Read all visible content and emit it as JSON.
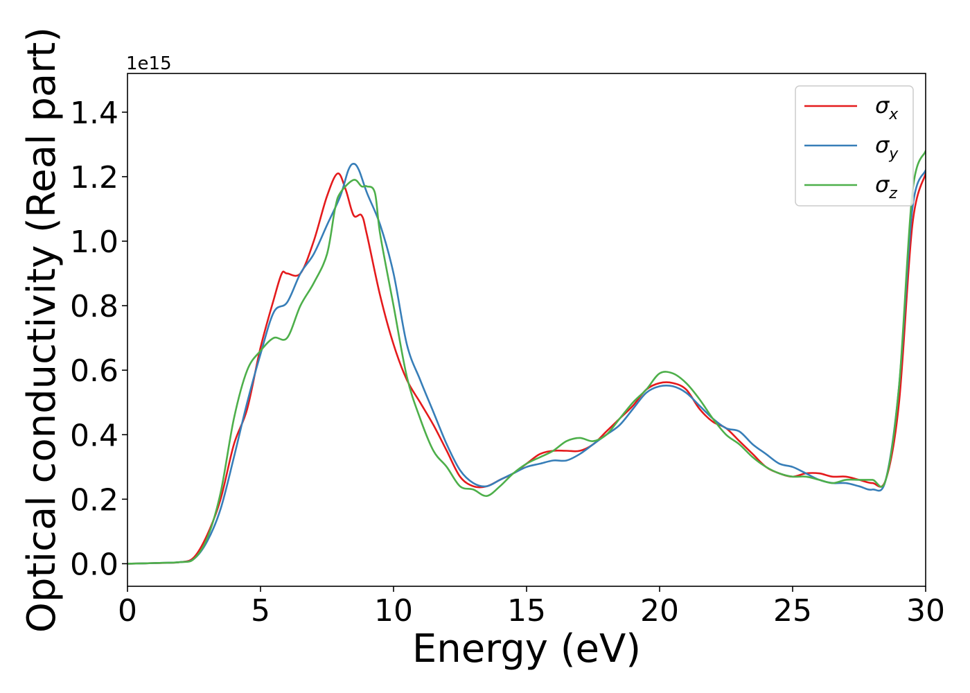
{
  "chart_data": {
    "type": "line",
    "xlabel": "Energy (eV)",
    "ylabel": "Optical conductivity (Real part)",
    "y_offset_label": "1e15",
    "xlim": [
      0,
      30
    ],
    "ylim": [
      -0.07,
      1.52
    ],
    "x_ticks": [
      0,
      5,
      10,
      15,
      20,
      25,
      30
    ],
    "x_tick_labels": [
      "0",
      "5",
      "10",
      "15",
      "20",
      "25",
      "30"
    ],
    "y_ticks": [
      0.0,
      0.2,
      0.4,
      0.6,
      0.8,
      1.0,
      1.2,
      1.4
    ],
    "y_tick_labels": [
      "0.0",
      "0.2",
      "0.4",
      "0.6",
      "0.8",
      "1.0",
      "1.2",
      "1.4"
    ],
    "grid": false,
    "legend_position": "top-right",
    "series": [
      {
        "name": "σ",
        "subscript": "x",
        "color": "#e41a1c",
        "x": [
          0,
          1,
          2,
          2.5,
          3,
          3.5,
          4,
          4.5,
          5,
          5.5,
          5.8,
          6,
          6.5,
          7,
          7.5,
          7.9,
          8.2,
          8.5,
          8.8,
          9,
          9.5,
          10,
          10.5,
          11,
          11.5,
          12,
          12.5,
          13,
          13.5,
          14,
          14.5,
          15,
          15.5,
          16,
          16.5,
          17,
          17.5,
          18,
          18.5,
          19,
          19.5,
          20,
          20.5,
          21,
          21.5,
          22,
          22.5,
          23,
          23.5,
          24,
          24.5,
          25,
          25.5,
          26,
          26.5,
          27,
          27.5,
          28,
          28.5,
          29,
          29.5,
          30
        ],
        "y": [
          0,
          0.002,
          0.005,
          0.02,
          0.09,
          0.2,
          0.37,
          0.48,
          0.67,
          0.82,
          0.9,
          0.9,
          0.9,
          1.0,
          1.14,
          1.21,
          1.16,
          1.08,
          1.08,
          1.02,
          0.83,
          0.68,
          0.57,
          0.5,
          0.43,
          0.35,
          0.27,
          0.24,
          0.24,
          0.26,
          0.28,
          0.31,
          0.34,
          0.35,
          0.35,
          0.35,
          0.37,
          0.41,
          0.45,
          0.49,
          0.54,
          0.56,
          0.56,
          0.54,
          0.48,
          0.44,
          0.42,
          0.38,
          0.34,
          0.3,
          0.28,
          0.27,
          0.28,
          0.28,
          0.27,
          0.27,
          0.26,
          0.25,
          0.26,
          0.5,
          1.05,
          1.21
        ]
      },
      {
        "name": "σ",
        "subscript": "y",
        "color": "#377eb8",
        "x": [
          0,
          1,
          2,
          2.5,
          3,
          3.5,
          4,
          4.5,
          5,
          5.5,
          6,
          6.5,
          7,
          7.5,
          8,
          8.3,
          8.5,
          8.7,
          9,
          9.5,
          10,
          10.5,
          11,
          11.5,
          12,
          12.5,
          13,
          13.5,
          14,
          14.5,
          15,
          15.5,
          16,
          16.5,
          17,
          17.5,
          18,
          18.5,
          19,
          19.5,
          20,
          20.5,
          21,
          21.5,
          22,
          22.5,
          23,
          23.5,
          24,
          24.5,
          25,
          25.5,
          26,
          26.5,
          27,
          27.5,
          28,
          28.5,
          29,
          29.5,
          30
        ],
        "y": [
          0,
          0.002,
          0.005,
          0.015,
          0.07,
          0.17,
          0.33,
          0.5,
          0.65,
          0.78,
          0.81,
          0.9,
          0.96,
          1.05,
          1.14,
          1.22,
          1.24,
          1.22,
          1.15,
          1.05,
          0.9,
          0.68,
          0.57,
          0.47,
          0.37,
          0.29,
          0.25,
          0.24,
          0.26,
          0.28,
          0.3,
          0.31,
          0.32,
          0.32,
          0.34,
          0.37,
          0.4,
          0.43,
          0.48,
          0.53,
          0.55,
          0.55,
          0.53,
          0.49,
          0.45,
          0.42,
          0.41,
          0.37,
          0.34,
          0.31,
          0.3,
          0.28,
          0.26,
          0.25,
          0.25,
          0.24,
          0.23,
          0.26,
          0.55,
          1.1,
          1.22
        ]
      },
      {
        "name": "σ",
        "subscript": "z",
        "color": "#4daf4a",
        "x": [
          0,
          1,
          2,
          2.5,
          3,
          3.5,
          4,
          4.5,
          5,
          5.5,
          6,
          6.5,
          7,
          7.5,
          7.8,
          8,
          8.5,
          8.8,
          9,
          9.3,
          9.5,
          10,
          10.5,
          11,
          11.5,
          12,
          12.5,
          13,
          13.5,
          14,
          14.5,
          15,
          15.5,
          16,
          16.5,
          17,
          17.5,
          18,
          18.5,
          19,
          19.5,
          20,
          20.5,
          21,
          21.5,
          22,
          22.5,
          23,
          23.5,
          24,
          24.5,
          25,
          25.5,
          26,
          26.5,
          27,
          27.5,
          28,
          28.5,
          29,
          29.5,
          30
        ],
        "y": [
          0,
          0.002,
          0.005,
          0.015,
          0.08,
          0.22,
          0.45,
          0.6,
          0.66,
          0.7,
          0.7,
          0.8,
          0.87,
          0.96,
          1.1,
          1.15,
          1.19,
          1.17,
          1.17,
          1.15,
          1.02,
          0.8,
          0.58,
          0.45,
          0.35,
          0.3,
          0.24,
          0.23,
          0.21,
          0.24,
          0.28,
          0.31,
          0.33,
          0.35,
          0.38,
          0.39,
          0.38,
          0.4,
          0.45,
          0.5,
          0.54,
          0.59,
          0.59,
          0.56,
          0.51,
          0.45,
          0.4,
          0.37,
          0.33,
          0.3,
          0.28,
          0.27,
          0.27,
          0.26,
          0.25,
          0.26,
          0.26,
          0.26,
          0.26,
          0.55,
          1.15,
          1.28
        ]
      }
    ]
  }
}
